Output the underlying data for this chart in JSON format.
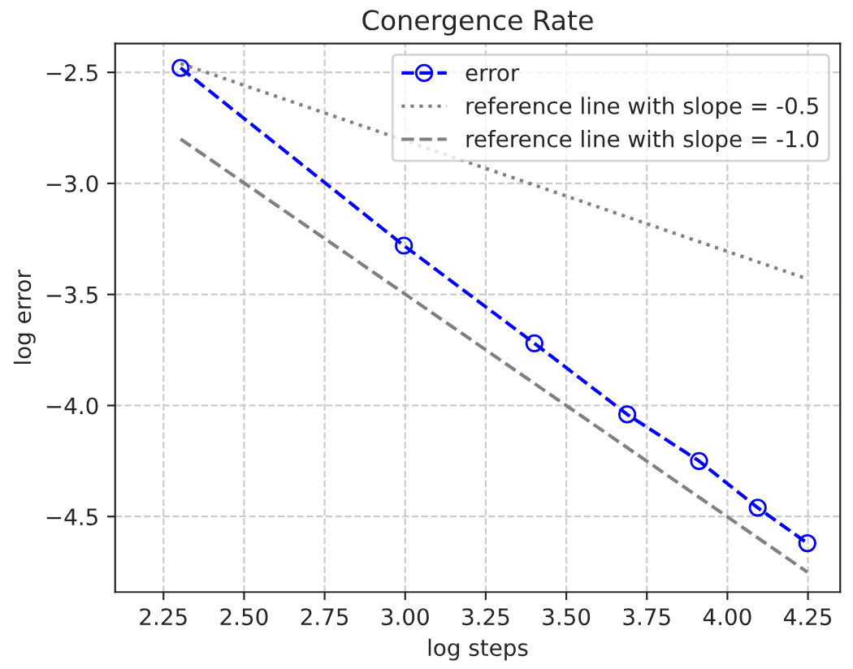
{
  "chart_data": {
    "type": "line",
    "title": "Conergence Rate",
    "xlabel": "log steps",
    "ylabel": "log error",
    "series": [
      {
        "name": "error",
        "color": "#0000ff",
        "x": [
          2.303,
          2.996,
          3.401,
          3.689,
          3.912,
          4.094,
          4.248
        ],
        "values": [
          -2.48,
          -3.28,
          -3.72,
          -4.04,
          -4.25,
          -4.46,
          -4.62
        ],
        "marker": "circle",
        "line_style": "dashed"
      },
      {
        "name": "reference line with slope = -0.5",
        "color": "#808080",
        "x": [
          2.303,
          4.248
        ],
        "values": [
          -2.46,
          -3.43
        ],
        "marker": "none",
        "line_style": "dotted"
      },
      {
        "name": "reference line with slope = -1.0",
        "color": "#808080",
        "x": [
          2.303,
          4.248
        ],
        "values": [
          -2.8,
          -4.75
        ],
        "marker": "none",
        "line_style": "dashed"
      }
    ],
    "xlim": [
      2.1,
      4.35
    ],
    "xticks": [
      {
        "value": 2.25,
        "label": "2.25"
      },
      {
        "value": 2.5,
        "label": "2.50"
      },
      {
        "value": 2.75,
        "label": "2.75"
      },
      {
        "value": 3.0,
        "label": "3.00"
      },
      {
        "value": 3.25,
        "label": "3.25"
      },
      {
        "value": 3.5,
        "label": "3.50"
      },
      {
        "value": 3.75,
        "label": "3.75"
      },
      {
        "value": 4.0,
        "label": "4.00"
      },
      {
        "value": 4.25,
        "label": "4.25"
      }
    ],
    "ylim": [
      -4.84,
      -2.37
    ],
    "yticks": [
      {
        "value": -4.5,
        "label": "−4.5"
      },
      {
        "value": -4.0,
        "label": "−4.0"
      },
      {
        "value": -3.5,
        "label": "−3.5"
      },
      {
        "value": -3.0,
        "label": "−3.0"
      },
      {
        "value": -2.5,
        "label": "−2.5"
      }
    ],
    "grid": true,
    "legend": "top right"
  }
}
